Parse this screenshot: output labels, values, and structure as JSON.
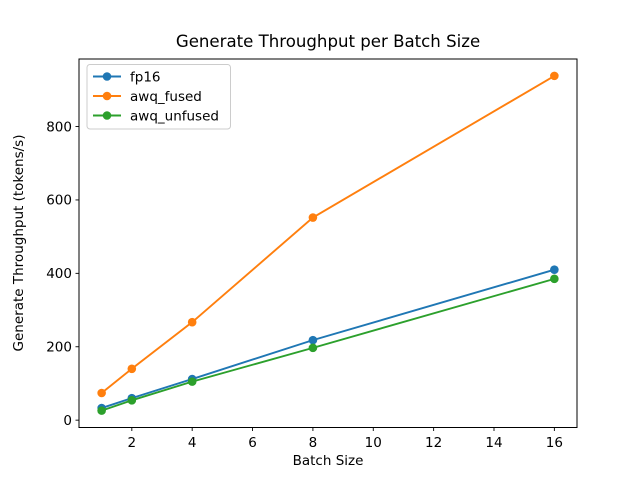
{
  "chart_data": {
    "type": "line",
    "title": "Generate Throughput per Batch Size",
    "xlabel": "Batch Size",
    "ylabel": "Generate Throughput (tokens/s)",
    "x": [
      1,
      2,
      4,
      8,
      16
    ],
    "series": [
      {
        "name": "fp16",
        "color": "#1f77b4",
        "values": [
          33,
          60,
          112,
          218,
          410
        ]
      },
      {
        "name": "awq_fused",
        "color": "#ff7f0e",
        "values": [
          74,
          140,
          267,
          552,
          938
        ]
      },
      {
        "name": "awq_unfused",
        "color": "#2ca02c",
        "values": [
          26,
          54,
          105,
          197,
          385
        ]
      }
    ],
    "xticks": [
      2,
      4,
      6,
      8,
      10,
      12,
      14,
      16
    ],
    "yticks": [
      0,
      200,
      400,
      600,
      800
    ],
    "xlim": [
      0.25,
      16.75
    ],
    "ylim": [
      -20,
      984
    ],
    "grid": false,
    "legend_position": "upper left",
    "marker": "o",
    "background_color": "#ffffff",
    "spine_color": "#000000",
    "legend_border_color": "#cccccc"
  }
}
